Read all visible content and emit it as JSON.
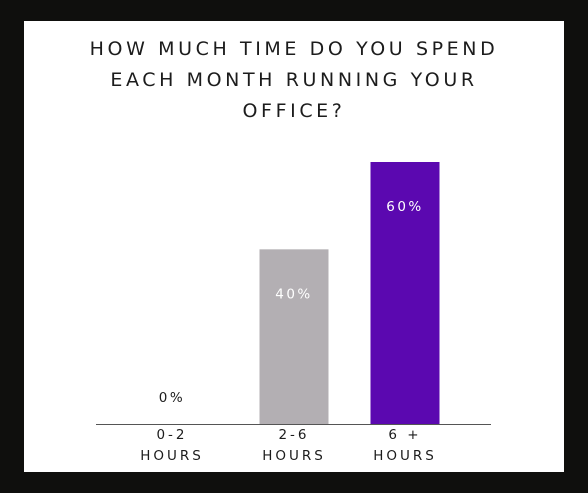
{
  "chart_data": {
    "type": "bar",
    "title_lines": [
      "HOW MUCH TIME DO YOU SPEND",
      "EACH MONTH RUNNING YOUR",
      "OFFICE?"
    ],
    "categories": [
      {
        "line1": "0-2",
        "line2": "HOURS"
      },
      {
        "line1": "2-6",
        "line2": "HOURS"
      },
      {
        "line1": "6 +",
        "line2": "HOURS"
      }
    ],
    "values": [
      0,
      40,
      60
    ],
    "value_labels": [
      "0%",
      "40%",
      "60%"
    ],
    "bar_colors": [
      "#b3afb3",
      "#b3afb3",
      "#5b08b0"
    ],
    "label_colors": [
      "#1c1c1c",
      "#ffffff",
      "#ffffff"
    ],
    "ylim": [
      0,
      60
    ],
    "grid": false
  }
}
